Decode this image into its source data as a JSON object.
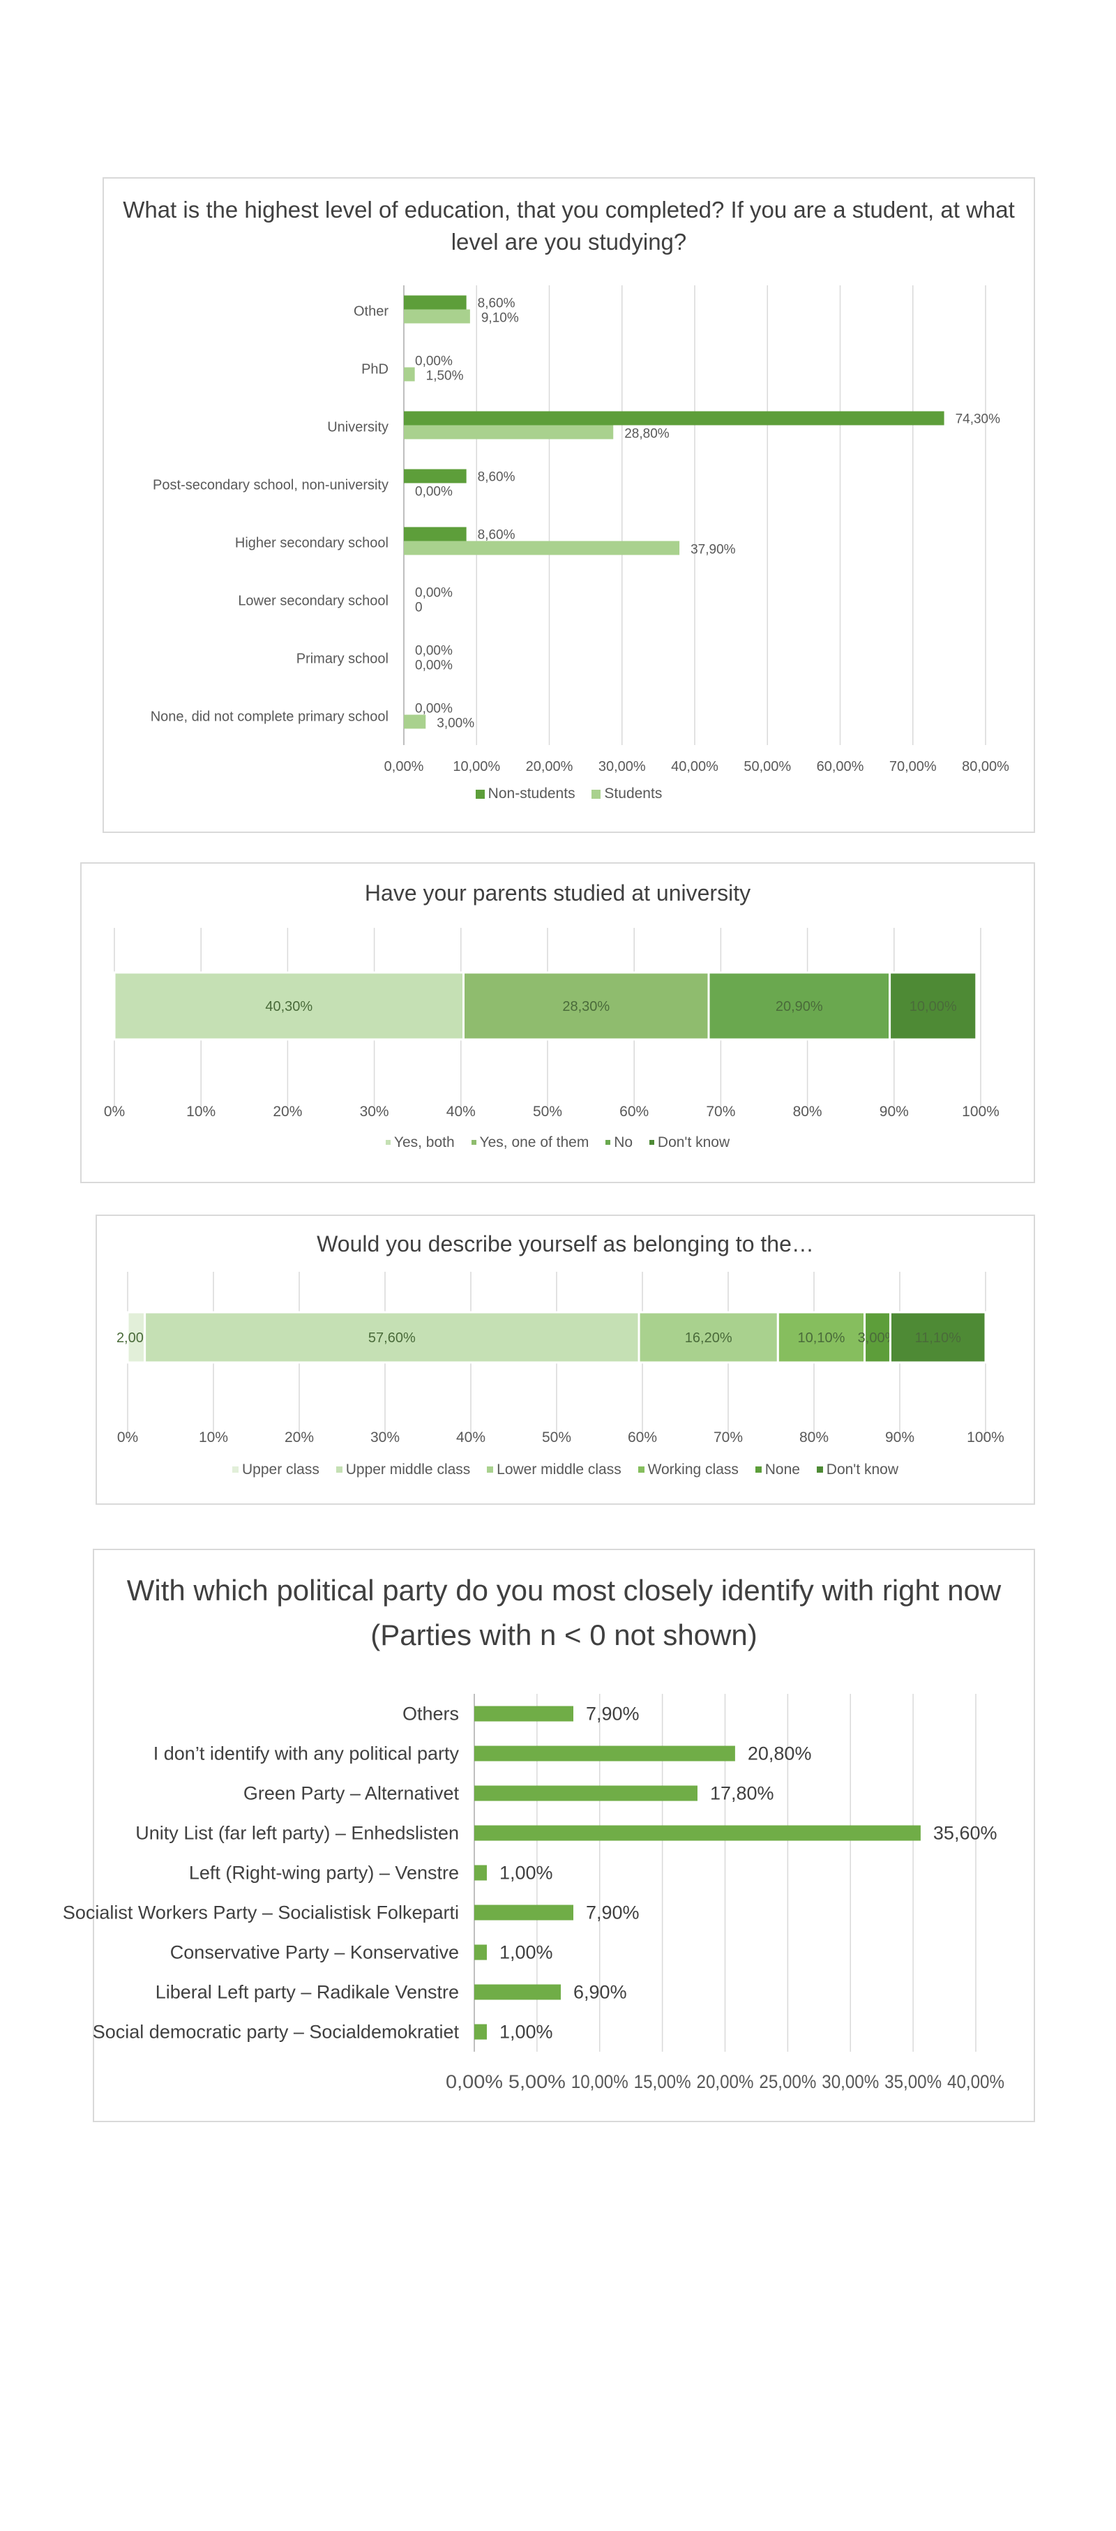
{
  "colors": {
    "non_students": "#5d9e3a",
    "students": "#a9d18e",
    "parents": [
      "#c5e0b4",
      "#8fbc6e",
      "#6aa84f",
      "#4e8a35"
    ],
    "class": [
      "#e2efd9",
      "#c5e0b4",
      "#a9d18e",
      "#86be5e",
      "#5d9e3a",
      "#4e8a35"
    ],
    "party": "#70ad47",
    "grid": "#d9d9d9"
  },
  "chart_data": [
    {
      "type": "bar",
      "orientation": "horizontal",
      "title": "What is the highest level of education, that you completed? If you are a student, at what level are you studying?",
      "categories": [
        "Other",
        "PhD",
        "University",
        "Post-secondary school, non-university",
        "Higher secondary school",
        "Lower secondary school",
        "Primary school",
        "None, did not complete primary school"
      ],
      "series": [
        {
          "name": "Non-students",
          "values": [
            8.6,
            0,
            74.3,
            8.6,
            8.6,
            0,
            0,
            0
          ],
          "labels": [
            "8,60%",
            "0,00%",
            "74,30%",
            "8,60%",
            "8,60%",
            "0,00%",
            "0,00%",
            "0,00%"
          ]
        },
        {
          "name": "Students",
          "values": [
            9.1,
            1.5,
            28.8,
            0,
            37.9,
            0,
            0,
            3.0
          ],
          "labels": [
            "9,10%",
            "1,50%",
            "28,80%",
            "0,00%",
            "37,90%",
            "0",
            "0,00%",
            "3,00%"
          ]
        }
      ],
      "xlim": [
        0,
        80
      ],
      "xticks": [
        "0,00%",
        "10,00%",
        "20,00%",
        "30,00%",
        "40,00%",
        "50,00%",
        "60,00%",
        "70,00%",
        "80,00%"
      ],
      "legend": [
        "Non-students",
        "Students"
      ],
      "legend_position": "bottom"
    },
    {
      "type": "bar",
      "orientation": "horizontal-stacked-100",
      "title": "Have your parents studied at university",
      "series": [
        {
          "name": "Yes, both",
          "value": 40.3,
          "label": "40,30%"
        },
        {
          "name": "Yes, one of them",
          "value": 28.3,
          "label": "28,30%"
        },
        {
          "name": "No",
          "value": 20.9,
          "label": "20,90%"
        },
        {
          "name": "Don't know",
          "value": 10.0,
          "label": "10,00%"
        }
      ],
      "xlim": [
        0,
        100
      ],
      "xticks": [
        "0%",
        "10%",
        "20%",
        "30%",
        "40%",
        "50%",
        "60%",
        "70%",
        "80%",
        "90%",
        "100%"
      ],
      "legend": [
        "Yes, both",
        "Yes, one of them",
        "No",
        "Don't know"
      ],
      "legend_position": "bottom"
    },
    {
      "type": "bar",
      "orientation": "horizontal-stacked-100",
      "title": "Would you describe yourself as belonging to the…",
      "series": [
        {
          "name": "Upper class",
          "value": 2.0,
          "label": "2,00%"
        },
        {
          "name": "Upper middle class",
          "value": 57.6,
          "label": "57,60%"
        },
        {
          "name": "Lower middle class",
          "value": 16.2,
          "label": "16,20%"
        },
        {
          "name": "Working class",
          "value": 10.1,
          "label": "10,10%"
        },
        {
          "name": "None",
          "value": 3.0,
          "label": "3,00%"
        },
        {
          "name": "Don't know",
          "value": 11.1,
          "label": "11,10%"
        }
      ],
      "xlim": [
        0,
        100
      ],
      "xticks": [
        "0%",
        "10%",
        "20%",
        "30%",
        "40%",
        "50%",
        "60%",
        "70%",
        "80%",
        "90%",
        "100%"
      ],
      "legend": [
        "Upper class",
        "Upper middle class",
        "Lower middle class",
        "Working class",
        "None",
        "Don't know"
      ],
      "legend_position": "bottom"
    },
    {
      "type": "bar",
      "orientation": "horizontal",
      "title": "With which political party do you most closely identify with right now (Parties with n < 0 not shown)",
      "categories": [
        "Others",
        "I don’t identify with any political party",
        "Green Party – Alternativet",
        "Unity List (far left party) – Enhedslisten",
        "Left (Right-wing party) – Venstre",
        "Socialist Workers Party – Socialistisk Folkeparti",
        "Conservative Party – Konservative",
        "Liberal Left party – Radikale Venstre",
        "Social democratic party – Socialdemokratiet"
      ],
      "values": [
        7.9,
        20.8,
        17.8,
        35.6,
        1.0,
        7.9,
        1.0,
        6.9,
        1.0
      ],
      "labels": [
        "7,90%",
        "20,80%",
        "17,80%",
        "35,60%",
        "1,00%",
        "7,90%",
        "1,00%",
        "6,90%",
        "1,00%"
      ],
      "xlim": [
        0,
        40
      ],
      "xticks": [
        "0,00%",
        "5,00%",
        "10,00%",
        "15,00%",
        "20,00%",
        "25,00%",
        "30,00%",
        "35,00%",
        "40,00%"
      ]
    }
  ]
}
